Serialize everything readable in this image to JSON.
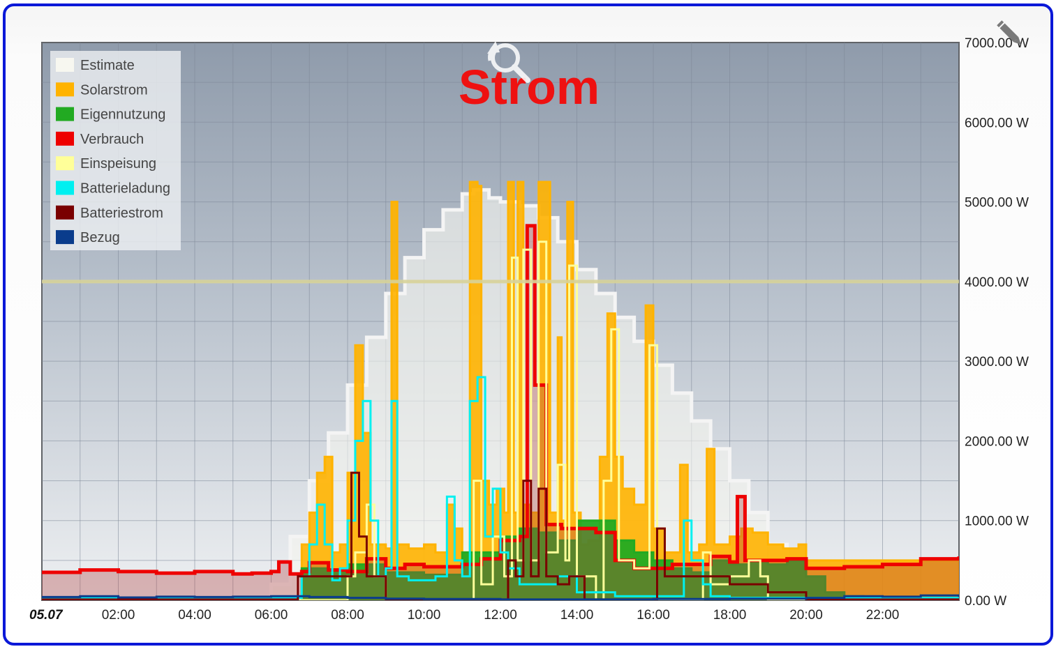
{
  "chart_data": {
    "type": "area",
    "title": "Strom",
    "xlabel": "",
    "ylabel": "",
    "x_tick_labels": [
      "05.07",
      "02:00",
      "04:00",
      "06:00",
      "08:00",
      "10:00",
      "12:00",
      "14:00",
      "16:00",
      "18:00",
      "20:00",
      "22:00"
    ],
    "x_range_hours": [
      0,
      24
    ],
    "y_tick_labels": [
      "0.00 W",
      "1000.00 W",
      "2000.00 W",
      "3000.00 W",
      "4000.00 W",
      "5000.00 W",
      "6000.00 W",
      "7000.00 W"
    ],
    "ylim": [
      0,
      7000
    ],
    "y_axis_side": "right",
    "grid": true,
    "legend_position": "top-left",
    "reference_line_y": 4000,
    "series": [
      {
        "name": "Estimate",
        "color": "#f7f7f0",
        "style": "area",
        "points": [
          [
            0,
            0
          ],
          [
            5.8,
            0
          ],
          [
            6,
            200
          ],
          [
            6.5,
            800
          ],
          [
            7,
            1500
          ],
          [
            7.5,
            2100
          ],
          [
            8,
            2700
          ],
          [
            8.5,
            3300
          ],
          [
            9,
            3850
          ],
          [
            9.5,
            4300
          ],
          [
            10,
            4650
          ],
          [
            10.5,
            4900
          ],
          [
            11,
            5100
          ],
          [
            11.3,
            5150
          ],
          [
            11.7,
            5050
          ],
          [
            12,
            5000
          ],
          [
            12.5,
            4950
          ],
          [
            13,
            4800
          ],
          [
            13.5,
            4500
          ],
          [
            14,
            4150
          ],
          [
            14.5,
            3850
          ],
          [
            15,
            3550
          ],
          [
            15.5,
            3250
          ],
          [
            16,
            2950
          ],
          [
            16.5,
            2600
          ],
          [
            17,
            2250
          ],
          [
            17.5,
            1900
          ],
          [
            18,
            1500
          ],
          [
            18.5,
            1100
          ],
          [
            19,
            700
          ],
          [
            19.5,
            350
          ],
          [
            20,
            100
          ],
          [
            20.5,
            0
          ],
          [
            24,
            0
          ]
        ]
      },
      {
        "name": "Solarstrom",
        "color": "#ffb300",
        "style": "area",
        "points": [
          [
            0,
            0
          ],
          [
            6.7,
            0
          ],
          [
            6.8,
            700
          ],
          [
            7,
            1100
          ],
          [
            7.2,
            1600
          ],
          [
            7.4,
            1800
          ],
          [
            7.6,
            600
          ],
          [
            7.8,
            700
          ],
          [
            8,
            1600
          ],
          [
            8.2,
            3200
          ],
          [
            8.4,
            2100
          ],
          [
            8.6,
            700
          ],
          [
            8.8,
            700
          ],
          [
            9,
            650
          ],
          [
            9.15,
            5000
          ],
          [
            9.3,
            700
          ],
          [
            9.6,
            650
          ],
          [
            10,
            700
          ],
          [
            10.3,
            600
          ],
          [
            10.6,
            1200
          ],
          [
            10.8,
            900
          ],
          [
            11,
            600
          ],
          [
            11.2,
            5250
          ],
          [
            11.4,
            5200
          ],
          [
            11.5,
            1500
          ],
          [
            11.7,
            1200
          ],
          [
            11.9,
            1400
          ],
          [
            12.1,
            1100
          ],
          [
            12.2,
            5250
          ],
          [
            12.35,
            1100
          ],
          [
            12.45,
            5250
          ],
          [
            12.6,
            1200
          ],
          [
            12.8,
            1100
          ],
          [
            13,
            5250
          ],
          [
            13.3,
            1100
          ],
          [
            13.5,
            3300
          ],
          [
            13.6,
            1000
          ],
          [
            13.75,
            5000
          ],
          [
            13.9,
            1100
          ],
          [
            14.1,
            700
          ],
          [
            14.3,
            750
          ],
          [
            14.6,
            1800
          ],
          [
            14.8,
            3600
          ],
          [
            15,
            1800
          ],
          [
            15.2,
            1400
          ],
          [
            15.5,
            1200
          ],
          [
            15.8,
            3700
          ],
          [
            16,
            900
          ],
          [
            16.3,
            600
          ],
          [
            16.7,
            1700
          ],
          [
            16.9,
            600
          ],
          [
            17.2,
            700
          ],
          [
            17.4,
            1900
          ],
          [
            17.6,
            700
          ],
          [
            18,
            800
          ],
          [
            18.3,
            900
          ],
          [
            18.6,
            850
          ],
          [
            19,
            700
          ],
          [
            19.4,
            650
          ],
          [
            19.8,
            700
          ],
          [
            20,
            500
          ],
          [
            24,
            0
          ]
        ]
      },
      {
        "name": "Eigennutzung",
        "color": "#22aa22",
        "style": "area",
        "points": [
          [
            0,
            0
          ],
          [
            6.7,
            0
          ],
          [
            6.8,
            400
          ],
          [
            7.5,
            380
          ],
          [
            8,
            450
          ],
          [
            9,
            350
          ],
          [
            10,
            320
          ],
          [
            11,
            600
          ],
          [
            12,
            800
          ],
          [
            12.5,
            900
          ],
          [
            13,
            850
          ],
          [
            13.5,
            750
          ],
          [
            14,
            1000
          ],
          [
            15,
            750
          ],
          [
            15.5,
            600
          ],
          [
            16,
            500
          ],
          [
            16.5,
            400
          ],
          [
            17,
            350
          ],
          [
            17.5,
            500
          ],
          [
            18,
            450
          ],
          [
            18.5,
            500
          ],
          [
            19,
            450
          ],
          [
            19.5,
            500
          ],
          [
            20,
            300
          ],
          [
            20.5,
            100
          ],
          [
            21,
            50
          ],
          [
            21.5,
            0
          ],
          [
            24,
            0
          ]
        ]
      },
      {
        "name": "Verbrauch",
        "color": "#ee0000",
        "style": "line",
        "points": [
          [
            0,
            350
          ],
          [
            1,
            380
          ],
          [
            2,
            360
          ],
          [
            3,
            340
          ],
          [
            4,
            360
          ],
          [
            5,
            330
          ],
          [
            5.5,
            340
          ],
          [
            6,
            360
          ],
          [
            6.2,
            480
          ],
          [
            6.5,
            330
          ],
          [
            6.8,
            360
          ],
          [
            7,
            470
          ],
          [
            7.5,
            380
          ],
          [
            8,
            360
          ],
          [
            8.5,
            520
          ],
          [
            9,
            400
          ],
          [
            9.5,
            450
          ],
          [
            10,
            420
          ],
          [
            11,
            450
          ],
          [
            11.5,
            520
          ],
          [
            12,
            750
          ],
          [
            12.5,
            800
          ],
          [
            12.7,
            4700
          ],
          [
            12.9,
            2700
          ],
          [
            13.2,
            950
          ],
          [
            13.6,
            900
          ],
          [
            14,
            900
          ],
          [
            14.5,
            850
          ],
          [
            15,
            500
          ],
          [
            15.5,
            400
          ],
          [
            16,
            400
          ],
          [
            16.5,
            450
          ],
          [
            17,
            450
          ],
          [
            17.5,
            550
          ],
          [
            18,
            480
          ],
          [
            18.2,
            1300
          ],
          [
            18.4,
            500
          ],
          [
            19,
            500
          ],
          [
            19.5,
            520
          ],
          [
            20,
            400
          ],
          [
            20.5,
            400
          ],
          [
            21,
            420
          ],
          [
            22,
            450
          ],
          [
            23,
            520
          ],
          [
            24,
            550
          ]
        ]
      },
      {
        "name": "Einspeisung",
        "color": "#ffff99",
        "style": "line",
        "points": [
          [
            0,
            0
          ],
          [
            7.8,
            0
          ],
          [
            8,
            300
          ],
          [
            8.2,
            600
          ],
          [
            8.5,
            1200
          ],
          [
            8.7,
            300
          ],
          [
            9,
            0
          ],
          [
            11,
            0
          ],
          [
            11.3,
            1500
          ],
          [
            11.5,
            200
          ],
          [
            11.8,
            800
          ],
          [
            12.1,
            300
          ],
          [
            12.3,
            4300
          ],
          [
            12.45,
            500
          ],
          [
            12.6,
            4400
          ],
          [
            12.8,
            500
          ],
          [
            13,
            4500
          ],
          [
            13.2,
            600
          ],
          [
            13.5,
            1700
          ],
          [
            13.7,
            500
          ],
          [
            13.8,
            4200
          ],
          [
            14,
            300
          ],
          [
            14.5,
            0
          ],
          [
            14.7,
            1500
          ],
          [
            14.9,
            3400
          ],
          [
            15.1,
            500
          ],
          [
            15.5,
            400
          ],
          [
            15.9,
            3200
          ],
          [
            16.1,
            0
          ],
          [
            17,
            0
          ],
          [
            17.3,
            600
          ],
          [
            17.5,
            200
          ],
          [
            18,
            300
          ],
          [
            18.5,
            500
          ],
          [
            18.8,
            300
          ],
          [
            19,
            0
          ],
          [
            24,
            0
          ]
        ]
      },
      {
        "name": "Batterieladung",
        "color": "#00f0f0",
        "style": "line",
        "points": [
          [
            0,
            30
          ],
          [
            6.7,
            30
          ],
          [
            6.8,
            300
          ],
          [
            7,
            700
          ],
          [
            7.2,
            1200
          ],
          [
            7.4,
            700
          ],
          [
            7.6,
            250
          ],
          [
            7.8,
            400
          ],
          [
            8,
            1000
          ],
          [
            8.2,
            2000
          ],
          [
            8.4,
            2500
          ],
          [
            8.6,
            1000
          ],
          [
            8.8,
            300
          ],
          [
            9,
            400
          ],
          [
            9.15,
            2500
          ],
          [
            9.3,
            300
          ],
          [
            9.6,
            250
          ],
          [
            10,
            250
          ],
          [
            10.3,
            300
          ],
          [
            10.6,
            1300
          ],
          [
            10.8,
            500
          ],
          [
            11,
            300
          ],
          [
            11.2,
            2500
          ],
          [
            11.4,
            2800
          ],
          [
            11.6,
            800
          ],
          [
            11.8,
            1400
          ],
          [
            12,
            600
          ],
          [
            12.2,
            400
          ],
          [
            12.5,
            200
          ],
          [
            13,
            200
          ],
          [
            13.5,
            300
          ],
          [
            14,
            100
          ],
          [
            15,
            50
          ],
          [
            16,
            50
          ],
          [
            16.5,
            50
          ],
          [
            16.8,
            1000
          ],
          [
            17,
            500
          ],
          [
            17.3,
            200
          ],
          [
            17.5,
            50
          ],
          [
            18,
            30
          ],
          [
            24,
            30
          ]
        ]
      },
      {
        "name": "Batteriestrom",
        "color": "#7a0000",
        "style": "line",
        "points": [
          [
            0,
            10
          ],
          [
            6.6,
            10
          ],
          [
            6.7,
            300
          ],
          [
            8,
            300
          ],
          [
            8.1,
            1600
          ],
          [
            8.3,
            800
          ],
          [
            8.5,
            300
          ],
          [
            9,
            10
          ],
          [
            12,
            10
          ],
          [
            12.2,
            500
          ],
          [
            12.4,
            300
          ],
          [
            12.6,
            1500
          ],
          [
            12.8,
            300
          ],
          [
            13,
            1400
          ],
          [
            13.2,
            300
          ],
          [
            13.5,
            200
          ],
          [
            13.8,
            300
          ],
          [
            14.2,
            10
          ],
          [
            16,
            10
          ],
          [
            16.1,
            900
          ],
          [
            16.3,
            300
          ],
          [
            17,
            300
          ],
          [
            18,
            200
          ],
          [
            19,
            100
          ],
          [
            19.5,
            100
          ],
          [
            20,
            10
          ],
          [
            24,
            10
          ]
        ]
      },
      {
        "name": "Bezug",
        "color": "#0a3c8c",
        "style": "line",
        "points": [
          [
            0,
            40
          ],
          [
            1,
            50
          ],
          [
            2,
            35
          ],
          [
            3,
            45
          ],
          [
            4,
            40
          ],
          [
            5,
            45
          ],
          [
            6,
            50
          ],
          [
            7,
            40
          ],
          [
            8,
            30
          ],
          [
            9,
            20
          ],
          [
            10,
            15
          ],
          [
            12,
            10
          ],
          [
            14,
            10
          ],
          [
            16,
            15
          ],
          [
            18,
            20
          ],
          [
            20,
            30
          ],
          [
            21,
            50
          ],
          [
            22,
            45
          ],
          [
            23,
            60
          ],
          [
            24,
            40
          ]
        ]
      }
    ]
  },
  "icons": {
    "reset_zoom": "magnifier-reset-icon",
    "edit": "pencil-icon"
  }
}
